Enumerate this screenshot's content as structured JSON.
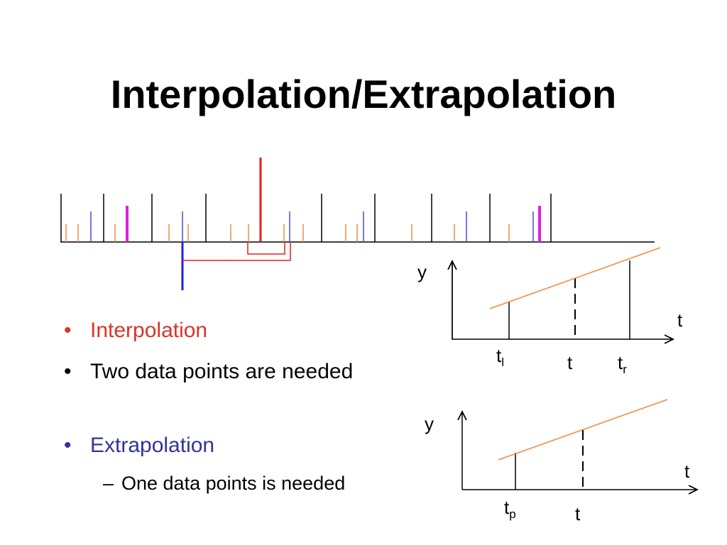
{
  "title": "Interpolation/Extrapolation",
  "bullets": [
    {
      "text": "Interpolation"
    },
    {
      "text": "Two data points are needed"
    },
    {
      "text": "Extrapolation",
      "children": [
        "One data points is needed"
      ]
    }
  ],
  "interpolation_graph": {
    "y_label": "y",
    "t_label": "t",
    "marks": [
      {
        "base": "t",
        "sub": "l"
      },
      {
        "base": "t"
      },
      {
        "base": "t",
        "sub": "r"
      }
    ]
  },
  "extrapolation_graph": {
    "y_label": "y",
    "t_label": "t",
    "marks": [
      {
        "base": "t",
        "sub": "p"
      },
      {
        "base": "t"
      }
    ]
  }
}
